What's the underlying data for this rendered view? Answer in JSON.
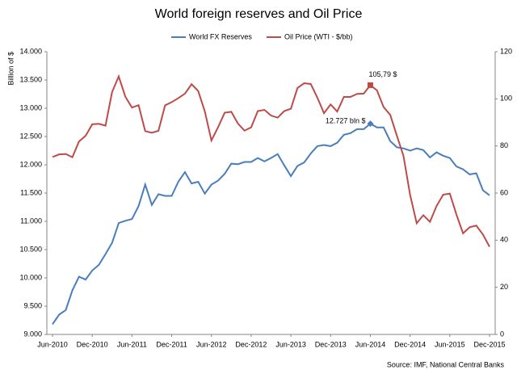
{
  "chart_data": {
    "type": "line",
    "title": "World foreign reserves and Oil Price",
    "y_label": "Billion of $",
    "source": "Source: IMF, National Central Banks",
    "categories": [
      "Jun-2010",
      null,
      null,
      null,
      null,
      null,
      "Dec-2010",
      null,
      null,
      null,
      null,
      null,
      "Jun-2011",
      null,
      null,
      null,
      null,
      null,
      "Dec-2011",
      null,
      null,
      null,
      null,
      null,
      "Jun-2012",
      null,
      null,
      null,
      null,
      null,
      "Dec-2012",
      null,
      null,
      null,
      null,
      null,
      "Jun-2013",
      null,
      null,
      null,
      null,
      null,
      "Dec-2013",
      null,
      null,
      null,
      null,
      null,
      "Jun-2014",
      null,
      null,
      null,
      null,
      null,
      "Dec-2014",
      null,
      null,
      null,
      null,
      null,
      "Jun-2015",
      null,
      null,
      null,
      null,
      null,
      "Dec-2015"
    ],
    "ylim": [
      9000,
      14000
    ],
    "yticks": [
      {
        "value": 9000,
        "label": "9.000"
      },
      {
        "value": 9500,
        "label": "9.500"
      },
      {
        "value": 10000,
        "label": "10.000"
      },
      {
        "value": 10500,
        "label": "10.500"
      },
      {
        "value": 11000,
        "label": "11.000"
      },
      {
        "value": 11500,
        "label": "11.500"
      },
      {
        "value": 12000,
        "label": "12.000"
      },
      {
        "value": 12500,
        "label": "12.500"
      },
      {
        "value": 13000,
        "label": "13.000"
      },
      {
        "value": 13500,
        "label": "13.500"
      },
      {
        "value": 14000,
        "label": "14.000"
      }
    ],
    "y2lim": [
      0,
      120
    ],
    "y2ticks": [
      0,
      20,
      40,
      60,
      80,
      100,
      120
    ],
    "grid": false,
    "legend": "top",
    "series": [
      {
        "name": "World FX Reserves",
        "color": "#4a7ebb",
        "values": [
          9180,
          9350,
          9430,
          9780,
          10020,
          9970,
          10130,
          10230,
          10420,
          10620,
          10970,
          11010,
          11040,
          11270,
          11650,
          11290,
          11480,
          11450,
          11450,
          11700,
          11870,
          11670,
          11700,
          11490,
          11650,
          11720,
          11840,
          12020,
          12010,
          12050,
          12050,
          12120,
          12060,
          12120,
          12190,
          11990,
          11800,
          11980,
          12040,
          12200,
          12330,
          12350,
          12330,
          12390,
          12530,
          12560,
          12630,
          12630,
          12727,
          12660,
          12660,
          12420,
          12310,
          12290,
          12250,
          12290,
          12260,
          12130,
          12220,
          12160,
          12120,
          11970,
          11920,
          11830,
          11850,
          11550,
          11460
        ],
        "value_labels": [
          null,
          null,
          null,
          null,
          null,
          null,
          null,
          null,
          null,
          null,
          null,
          null,
          null,
          null,
          null,
          null,
          null,
          null,
          null,
          null,
          null,
          null,
          null,
          null,
          null,
          null,
          null,
          null,
          null,
          null,
          null,
          null,
          null,
          null,
          null,
          null,
          null,
          null,
          null,
          null,
          null,
          null,
          null,
          null,
          null,
          null,
          null,
          null,
          "12.727 bln $",
          null,
          null,
          null,
          null,
          null,
          null,
          null,
          null,
          null,
          null,
          null,
          null,
          null,
          null,
          null,
          null,
          null,
          null
        ]
      },
      {
        "name": "Oil Price (WTI - $/bb)",
        "color": "#be4b48",
        "axis": "y2",
        "values": [
          75.3,
          76.4,
          76.6,
          75.2,
          81.9,
          84.3,
          89.2,
          89.4,
          88.6,
          102.9,
          109.5,
          100.9,
          96.3,
          97.3,
          86.3,
          85.6,
          86.4,
          97.2,
          98.6,
          100.3,
          102.2,
          106.2,
          103.3,
          94.7,
          82.3,
          87.9,
          94.1,
          94.5,
          89.5,
          86.5,
          87.9,
          94.8,
          95.3,
          92.9,
          92.0,
          94.8,
          95.8,
          104.6,
          106.6,
          106.3,
          100.5,
          93.9,
          97.6,
          94.6,
          100.8,
          100.8,
          102.1,
          102.2,
          105.79,
          103.6,
          96.5,
          93.2,
          84.4,
          75.8,
          59.3,
          47.2,
          50.6,
          47.8,
          54.5,
          59.3,
          59.8,
          50.9,
          42.9,
          45.5,
          46.2,
          42.4,
          37.2
        ],
        "value_labels": [
          null,
          null,
          null,
          null,
          null,
          null,
          null,
          null,
          null,
          null,
          null,
          null,
          null,
          null,
          null,
          null,
          null,
          null,
          null,
          null,
          null,
          null,
          null,
          null,
          null,
          null,
          null,
          null,
          null,
          null,
          null,
          null,
          null,
          null,
          null,
          null,
          null,
          null,
          null,
          null,
          null,
          null,
          null,
          null,
          null,
          null,
          null,
          null,
          "105,79 $",
          null,
          null,
          null,
          null,
          null,
          null,
          null,
          null,
          null,
          null,
          null,
          null,
          null,
          null,
          null,
          null,
          null,
          null
        ]
      }
    ]
  }
}
